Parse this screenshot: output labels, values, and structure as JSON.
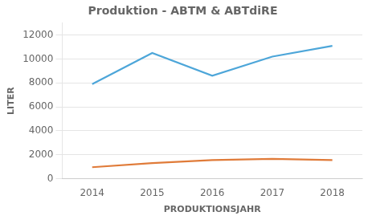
{
  "chart_data": {
    "type": "line",
    "title": "Produktion - ABTM & ABTdiRE",
    "xlabel": "PRODUKTIONSJAHR",
    "ylabel": "LITER",
    "x": [
      2014,
      2015,
      2016,
      2017,
      2018
    ],
    "series": [
      {
        "color": "#4da6d9",
        "values": [
          7900,
          10500,
          8600,
          10200,
          11100
        ]
      },
      {
        "color": "#e07b39",
        "values": [
          950,
          1300,
          1550,
          1650,
          1550
        ]
      }
    ],
    "xlim": [
      2013.5,
      2018.5
    ],
    "xticks": [
      2014,
      2015,
      2016,
      2017,
      2018
    ],
    "ylim": [
      0,
      13000
    ],
    "yticks": [
      0,
      2000,
      4000,
      6000,
      8000,
      10000,
      12000
    ],
    "grid": true
  }
}
